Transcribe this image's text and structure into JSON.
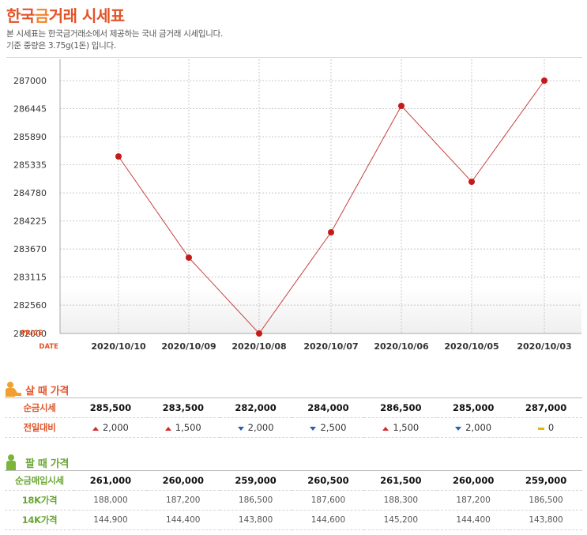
{
  "header": {
    "title_part1": "한국",
    "title_part2": "금",
    "title_part3": "거래 시세표",
    "desc1": "본 시세표는 한국금거래소에서 제공하는 국내 금거래 시세입니다.",
    "desc2": "기준 중량은 3.75g(1돈) 입니다."
  },
  "chart_data": {
    "type": "line",
    "x": [
      "2020/10/10",
      "2020/10/09",
      "2020/10/08",
      "2020/10/07",
      "2020/10/06",
      "2020/10/05",
      "2020/10/03"
    ],
    "series": [
      {
        "values": [
          285500,
          283500,
          282000,
          284000,
          286500,
          285000,
          287000
        ]
      }
    ],
    "yticks": [
      287000,
      286445,
      285890,
      285335,
      284780,
      284225,
      283670,
      283115,
      282560,
      282000
    ],
    "ylim": [
      282000,
      287000
    ],
    "ylabel": "PRICE",
    "xlabel": "DATE",
    "grid": true,
    "colors": {
      "line": "#c94040",
      "point": "#c41a1a",
      "grid": "#c8c8c8",
      "axis_label": "#e2542a"
    }
  },
  "buy": {
    "title": "살 때 가격",
    "price_label": "순금시세",
    "prices": [
      "285,500",
      "283,500",
      "282,000",
      "284,000",
      "286,500",
      "285,000",
      "287,000"
    ],
    "change_label": "전일대비",
    "changes": [
      {
        "dir": "up",
        "value": "2,000"
      },
      {
        "dir": "up",
        "value": "1,500"
      },
      {
        "dir": "down",
        "value": "2,000"
      },
      {
        "dir": "down",
        "value": "2,500"
      },
      {
        "dir": "up",
        "value": "1,500"
      },
      {
        "dir": "down",
        "value": "2,000"
      },
      {
        "dir": "flat",
        "value": "0"
      }
    ]
  },
  "sell": {
    "title": "팔 때 가격",
    "rows": [
      {
        "label": "순금매입시세",
        "bold": true,
        "values": [
          "261,000",
          "260,000",
          "259,000",
          "260,500",
          "261,500",
          "260,000",
          "259,000"
        ]
      },
      {
        "label": "18K가격",
        "bold": false,
        "values": [
          "188,000",
          "187,200",
          "186,500",
          "187,600",
          "188,300",
          "187,200",
          "186,500"
        ]
      },
      {
        "label": "14K가격",
        "bold": false,
        "values": [
          "144,900",
          "144,400",
          "143,800",
          "144,600",
          "145,200",
          "144,400",
          "143,800"
        ]
      }
    ]
  },
  "colors": {
    "accent": "#e2542a",
    "accent_light": "#f0862e",
    "sell_accent": "#6aa533",
    "buy_icon": "#f0a030",
    "sell_icon": "#7bb53a",
    "up": "#d12a2a",
    "down": "#2a5fb8",
    "flat": "#e8b800"
  }
}
